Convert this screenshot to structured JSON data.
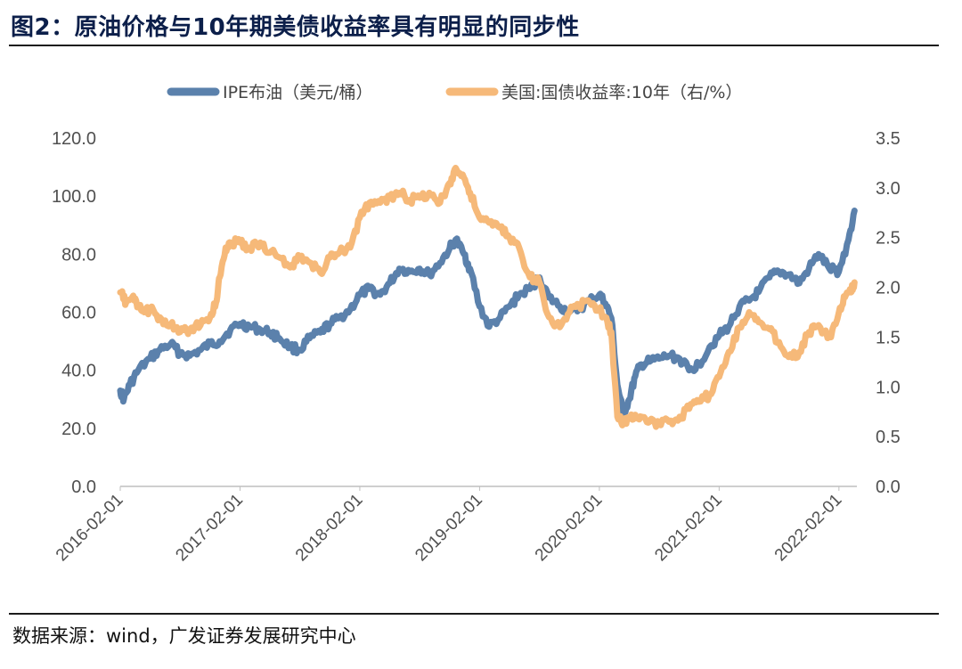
{
  "page": {
    "title": "图2：原油价格与10年期美债收益率具有明显的同步性",
    "source": "数据来源：wind，广发证券发展研究中心"
  },
  "chart_data": {
    "type": "line",
    "title": "原油价格与10年期美债收益率具有明显的同步性",
    "xlabel": "",
    "ylabel_left": "",
    "ylabel_right": "",
    "x_ticks": [
      "2016-02-01",
      "2017-02-01",
      "2018-02-01",
      "2019-02-01",
      "2020-02-01",
      "2021-02-01",
      "2022-02-01"
    ],
    "x_range": [
      2016.0,
      2022.15
    ],
    "y_left": {
      "min": 0,
      "max": 120,
      "step": 20,
      "tick_labels": [
        "0.0",
        "20.0",
        "40.0",
        "60.0",
        "80.0",
        "100.0",
        "120.0"
      ]
    },
    "y_right": {
      "min": 0,
      "max": 3.5,
      "step": 0.5,
      "tick_labels": [
        "0.0",
        "0.5",
        "1.0",
        "1.5",
        "2.0",
        "2.5",
        "3.0",
        "3.5"
      ]
    },
    "series": [
      {
        "name": "IPE布油（美元/桶）",
        "axis": "left",
        "color": "#5b81ac",
        "x": [
          2016.0,
          2016.03,
          2016.08,
          2016.15,
          2016.25,
          2016.33,
          2016.42,
          2016.5,
          2016.58,
          2016.67,
          2016.75,
          2016.83,
          2016.92,
          2017.0,
          2017.08,
          2017.17,
          2017.25,
          2017.33,
          2017.42,
          2017.5,
          2017.58,
          2017.67,
          2017.75,
          2017.83,
          2017.92,
          2018.0,
          2018.08,
          2018.17,
          2018.25,
          2018.33,
          2018.42,
          2018.5,
          2018.58,
          2018.67,
          2018.75,
          2018.8,
          2018.87,
          2018.92,
          2019.0,
          2019.08,
          2019.17,
          2019.25,
          2019.33,
          2019.42,
          2019.5,
          2019.58,
          2019.67,
          2019.75,
          2019.83,
          2019.92,
          2020.0,
          2020.05,
          2020.1,
          2020.15,
          2020.2,
          2020.25,
          2020.3,
          2020.35,
          2020.42,
          2020.5,
          2020.58,
          2020.67,
          2020.75,
          2020.83,
          2020.92,
          2021.0,
          2021.08,
          2021.17,
          2021.25,
          2021.33,
          2021.42,
          2021.5,
          2021.58,
          2021.67,
          2021.75,
          2021.83,
          2021.92,
          2022.0,
          2022.08,
          2022.13
        ],
        "y": [
          33,
          30,
          35,
          40,
          44,
          47,
          49,
          46,
          45,
          47,
          49,
          50,
          54,
          56,
          55,
          54,
          53,
          51,
          48,
          47,
          51,
          53,
          56,
          58,
          61,
          66,
          68,
          66,
          70,
          75,
          74,
          75,
          73,
          77,
          82,
          85,
          80,
          75,
          62,
          55,
          58,
          62,
          66,
          68,
          72,
          65,
          62,
          60,
          61,
          64,
          66,
          63,
          58,
          35,
          25,
          30,
          38,
          42,
          43,
          44,
          45,
          44,
          40,
          42,
          48,
          52,
          55,
          62,
          64,
          67,
          72,
          74,
          73,
          70,
          75,
          80,
          75,
          74,
          85,
          95
        ]
      },
      {
        "name": "美国:国债收益率:10年（右/%）",
        "axis": "right",
        "color": "#f6b979",
        "x": [
          2016.0,
          2016.05,
          2016.1,
          2016.15,
          2016.2,
          2016.25,
          2016.33,
          2016.42,
          2016.5,
          2016.58,
          2016.67,
          2016.75,
          2016.8,
          2016.83,
          2016.88,
          2016.92,
          2017.0,
          2017.08,
          2017.17,
          2017.25,
          2017.33,
          2017.42,
          2017.5,
          2017.58,
          2017.67,
          2017.75,
          2017.83,
          2017.92,
          2018.0,
          2018.08,
          2018.17,
          2018.25,
          2018.33,
          2018.42,
          2018.5,
          2018.58,
          2018.67,
          2018.75,
          2018.8,
          2018.87,
          2018.92,
          2019.0,
          2019.08,
          2019.17,
          2019.25,
          2019.33,
          2019.42,
          2019.5,
          2019.58,
          2019.67,
          2019.75,
          2019.83,
          2019.92,
          2020.0,
          2020.05,
          2020.1,
          2020.15,
          2020.2,
          2020.25,
          2020.3,
          2020.35,
          2020.42,
          2020.5,
          2020.58,
          2020.67,
          2020.75,
          2020.83,
          2020.92,
          2021.0,
          2021.08,
          2021.17,
          2021.25,
          2021.33,
          2021.42,
          2021.5,
          2021.58,
          2021.67,
          2021.75,
          2021.83,
          2021.92,
          2022.0,
          2022.05,
          2022.1,
          2022.13
        ],
        "y": [
          1.95,
          1.85,
          1.9,
          1.8,
          1.75,
          1.78,
          1.7,
          1.62,
          1.55,
          1.58,
          1.62,
          1.7,
          1.85,
          2.1,
          2.4,
          2.45,
          2.45,
          2.4,
          2.45,
          2.35,
          2.3,
          2.2,
          2.3,
          2.25,
          2.15,
          2.3,
          2.35,
          2.4,
          2.7,
          2.85,
          2.85,
          2.9,
          2.95,
          2.88,
          2.9,
          2.95,
          2.85,
          3.05,
          3.2,
          3.1,
          2.95,
          2.7,
          2.65,
          2.6,
          2.5,
          2.4,
          2.1,
          2.05,
          1.7,
          1.6,
          1.75,
          1.82,
          1.85,
          1.78,
          1.7,
          1.55,
          0.7,
          0.65,
          0.68,
          0.72,
          0.7,
          0.65,
          0.62,
          0.65,
          0.7,
          0.78,
          0.85,
          0.92,
          1.1,
          1.35,
          1.6,
          1.75,
          1.65,
          1.58,
          1.45,
          1.3,
          1.35,
          1.55,
          1.62,
          1.5,
          1.75,
          1.9,
          1.95,
          2.05
        ]
      }
    ],
    "legend": {
      "position": "top-center"
    },
    "grid": false
  }
}
